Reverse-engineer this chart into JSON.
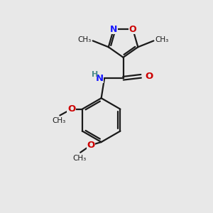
{
  "bg_color": "#e8e8e8",
  "bond_color": "#1a1a1a",
  "N_color": "#1919ff",
  "O_color": "#cc0000",
  "H_color": "#4a8a8a",
  "line_width": 1.6,
  "figsize": [
    3.0,
    3.0
  ],
  "dpi": 100,
  "xlim": [
    0,
    10
  ],
  "ylim": [
    0,
    10
  ]
}
